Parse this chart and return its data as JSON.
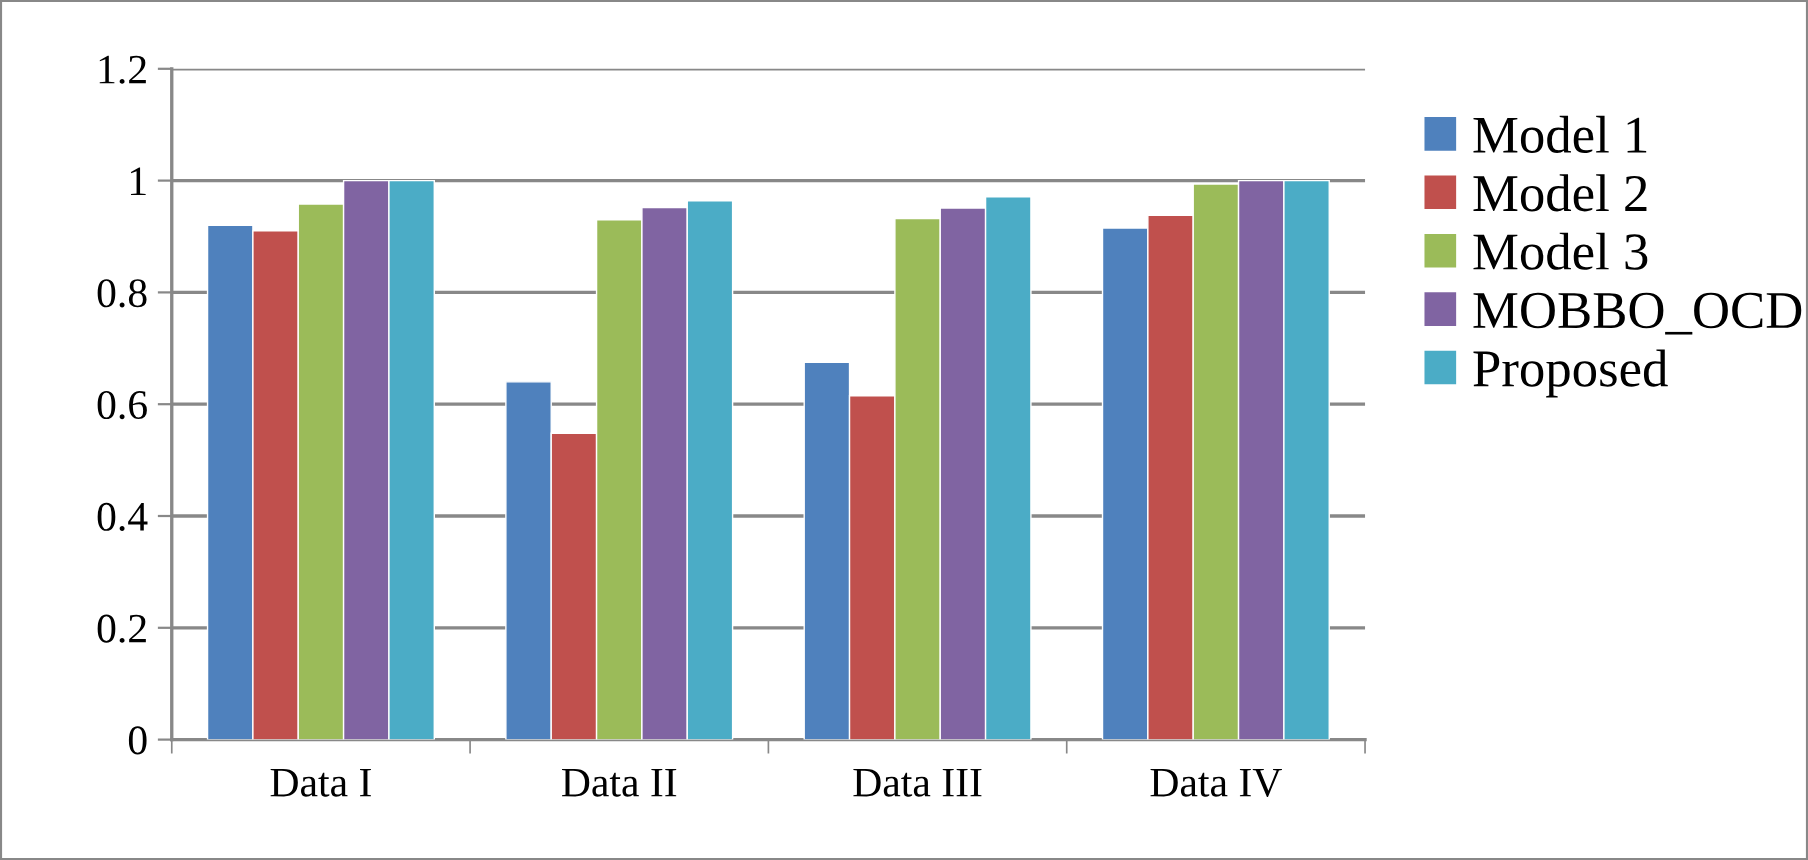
{
  "chart_data": {
    "type": "bar",
    "categories": [
      "Data I",
      "Data II",
      "Data III",
      "Data IV"
    ],
    "series": [
      {
        "name": "Model 1",
        "color": "#4f81bd",
        "values": [
          0.92,
          0.64,
          0.675,
          0.915
        ]
      },
      {
        "name": "Model 2",
        "color": "#c0504d",
        "values": [
          0.91,
          0.548,
          0.615,
          0.938
        ]
      },
      {
        "name": "Model 3",
        "color": "#9bbb59",
        "values": [
          0.958,
          0.93,
          0.932,
          0.994
        ]
      },
      {
        "name": "MOBBO_OCD",
        "color": "#8064a2",
        "values": [
          1.0,
          0.952,
          0.951,
          1.0
        ]
      },
      {
        "name": "Proposed",
        "color": "#4bacc6",
        "values": [
          1.0,
          0.964,
          0.971,
          1.0
        ]
      }
    ],
    "ylim": [
      0,
      1.2
    ],
    "yticks": [
      0,
      0.2,
      0.4,
      0.6,
      0.8,
      1,
      1.2
    ],
    "grid": "y",
    "legend": "right"
  }
}
